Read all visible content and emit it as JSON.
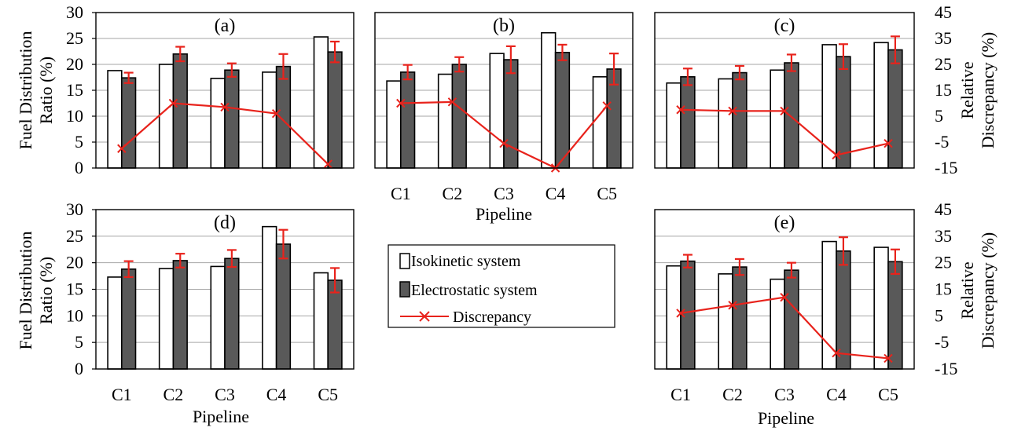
{
  "figure": {
    "left_ylabel": [
      "Fuel Distribution",
      "Ratio (%)"
    ],
    "right_ylabel": [
      "Relative",
      "Discrepancy (%)"
    ],
    "xlabel": "Pipeline",
    "legend": {
      "items": [
        "Isokinetic system",
        "Electrostatic system",
        "Discrepancy"
      ]
    },
    "colors": {
      "isokinetic": "#ffffff",
      "electrostatic": "#595959",
      "discrepancy": "#e8231c",
      "grid": "#a6a6a6"
    }
  },
  "chart_data": [
    {
      "type": "bar",
      "label": "(a)",
      "categories": [
        "C1",
        "C2",
        "C3",
        "C4",
        "C5"
      ],
      "ylim": [
        0,
        30
      ],
      "y2lim": [
        -15,
        45
      ],
      "series": [
        {
          "name": "Isokinetic system",
          "values": [
            18.8,
            20.0,
            17.3,
            18.5,
            25.3
          ]
        },
        {
          "name": "Electrostatic system",
          "values": [
            17.4,
            22.0,
            18.9,
            19.6,
            22.4
          ],
          "error": [
            1.0,
            1.4,
            1.3,
            2.4,
            2.0
          ]
        },
        {
          "name": "Discrepancy",
          "axis": "right",
          "values": [
            -7.5,
            10.0,
            8.5,
            6.0,
            -13.5
          ]
        }
      ]
    },
    {
      "type": "bar",
      "label": "(b)",
      "categories": [
        "C1",
        "C2",
        "C3",
        "C4",
        "C5"
      ],
      "ylim": [
        0,
        30
      ],
      "y2lim": [
        -15,
        45
      ],
      "series": [
        {
          "name": "Isokinetic system",
          "values": [
            16.8,
            18.1,
            22.1,
            26.1,
            17.6
          ]
        },
        {
          "name": "Electrostatic system",
          "values": [
            18.5,
            20.0,
            20.9,
            22.3,
            19.1
          ],
          "error": [
            1.4,
            1.4,
            2.6,
            1.5,
            3.0
          ]
        },
        {
          "name": "Discrepancy",
          "axis": "right",
          "values": [
            10.0,
            10.5,
            -5.5,
            -15.0,
            9.0
          ]
        }
      ]
    },
    {
      "type": "bar",
      "label": "(c)",
      "categories": [
        "C1",
        "C2",
        "C3",
        "C4",
        "C5"
      ],
      "ylim": [
        0,
        30
      ],
      "y2lim": [
        -15,
        45
      ],
      "series": [
        {
          "name": "Isokinetic system",
          "values": [
            16.4,
            17.2,
            18.9,
            23.8,
            24.2
          ]
        },
        {
          "name": "Electrostatic system",
          "values": [
            17.6,
            18.4,
            20.3,
            21.5,
            22.8
          ],
          "error": [
            1.6,
            1.3,
            1.6,
            2.4,
            2.6
          ]
        },
        {
          "name": "Discrepancy",
          "axis": "right",
          "values": [
            7.5,
            7.0,
            7.0,
            -10.0,
            -5.5
          ]
        }
      ]
    },
    {
      "type": "bar",
      "label": "(d)",
      "categories": [
        "C1",
        "C2",
        "C3",
        "C4",
        "C5"
      ],
      "ylim": [
        0,
        30
      ],
      "y2lim": [
        -15,
        45
      ],
      "series": [
        {
          "name": "Isokinetic system",
          "values": [
            17.3,
            18.9,
            19.3,
            26.8,
            18.1
          ]
        },
        {
          "name": "Electrostatic system",
          "values": [
            18.8,
            20.4,
            20.8,
            23.5,
            16.7
          ],
          "error": [
            1.5,
            1.3,
            1.6,
            2.7,
            2.3
          ]
        },
        {
          "name": "Discrepancy"
        }
      ]
    },
    {
      "type": "bar",
      "label": "(e)",
      "categories": [
        "C1",
        "C2",
        "C3",
        "C4",
        "C5"
      ],
      "ylim": [
        0,
        30
      ],
      "y2lim": [
        -15,
        45
      ],
      "series": [
        {
          "name": "Isokinetic system",
          "values": [
            19.4,
            17.9,
            16.9,
            24.0,
            22.9
          ]
        },
        {
          "name": "Electrostatic system",
          "values": [
            20.3,
            19.2,
            18.6,
            22.2,
            20.2
          ],
          "error": [
            1.2,
            1.5,
            1.4,
            2.6,
            2.3
          ]
        },
        {
          "name": "Discrepancy",
          "axis": "right",
          "values": [
            6.0,
            9.0,
            12.0,
            -9.0,
            -11.0
          ]
        }
      ]
    }
  ]
}
